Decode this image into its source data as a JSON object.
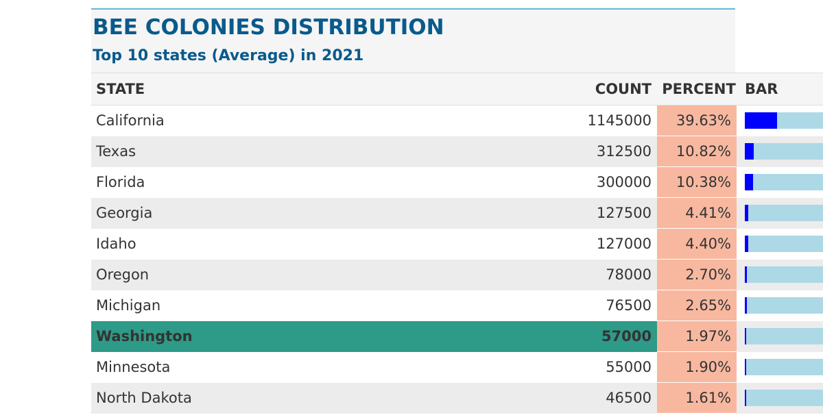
{
  "title": "BEE COLONIES DISTRIBUTION",
  "subtitle": "Top 10 states (Average) in 2021",
  "headers": [
    "STATE",
    "COUNT",
    "PERCENT",
    "BAR"
  ],
  "highlight_color": "#2e9a88",
  "percent_cell_color": "#f8b8a0",
  "bar_fill_color": "#0000ff",
  "bar_track_color": "#add8e6",
  "rows": [
    {
      "state": "California",
      "count": "1145000",
      "percent": "39.63%",
      "highlight": false
    },
    {
      "state": "Texas",
      "count": "312500",
      "percent": "10.82%",
      "highlight": false
    },
    {
      "state": "Florida",
      "count": "300000",
      "percent": "10.38%",
      "highlight": false
    },
    {
      "state": "Georgia",
      "count": "127500",
      "percent": "4.41%",
      "highlight": false
    },
    {
      "state": "Idaho",
      "count": "127000",
      "percent": "4.40%",
      "highlight": false
    },
    {
      "state": "Oregon",
      "count": "78000",
      "percent": "2.70%",
      "highlight": false
    },
    {
      "state": "Michigan",
      "count": "76500",
      "percent": "2.65%",
      "highlight": false
    },
    {
      "state": "Washington",
      "count": "57000",
      "percent": "1.97%",
      "highlight": true
    },
    {
      "state": "Minnesota",
      "count": "55000",
      "percent": "1.90%",
      "highlight": false
    },
    {
      "state": "North Dakota",
      "count": "46500",
      "percent": "1.61%",
      "highlight": false
    }
  ],
  "chart_data": {
    "type": "table",
    "title": "BEE COLONIES DISTRIBUTION",
    "subtitle": "Top 10 states (Average) in 2021",
    "columns": [
      "STATE",
      "COUNT",
      "PERCENT",
      "BAR"
    ],
    "categories": [
      "California",
      "Texas",
      "Florida",
      "Georgia",
      "Idaho",
      "Oregon",
      "Michigan",
      "Washington",
      "Minnesota",
      "North Dakota"
    ],
    "series": [
      {
        "name": "COUNT",
        "values": [
          1145000,
          312500,
          300000,
          127500,
          127000,
          78000,
          76500,
          57000,
          55000,
          46500
        ]
      },
      {
        "name": "PERCENT",
        "values": [
          39.63,
          10.82,
          10.38,
          4.41,
          4.4,
          2.7,
          2.65,
          1.97,
          1.9,
          1.61
        ]
      }
    ],
    "bar_scale_max_percent": 100,
    "highlighted_category": "Washington"
  }
}
